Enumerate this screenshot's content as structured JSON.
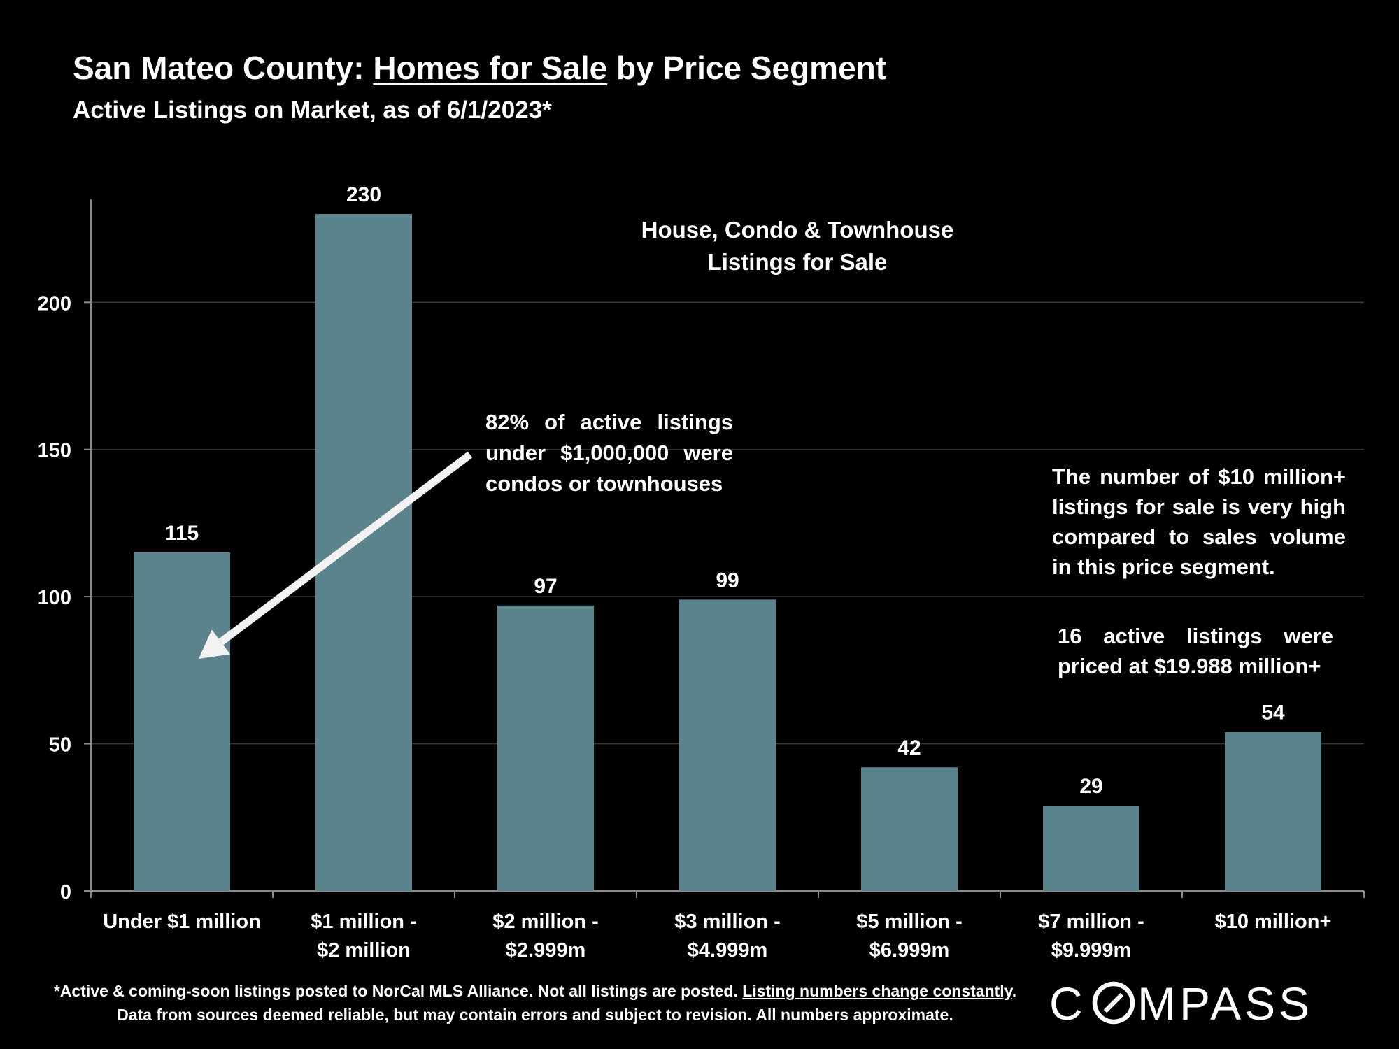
{
  "header": {
    "title_prefix": "San Mateo County: ",
    "title_underlined": "Homes for Sale",
    "title_suffix": " by Price Segment",
    "subtitle": "Active Listings on Market, as of 6/1/2023*"
  },
  "chart_data": {
    "type": "bar",
    "title": "San Mateo County: Homes for Sale by Price Segment",
    "subtitle": "Active Listings on Market, as of 6/1/2023*",
    "categories": [
      [
        "Under $1 million"
      ],
      [
        "$1 million -",
        "$2 million"
      ],
      [
        "$2 million -",
        "$2.999m"
      ],
      [
        "$3 million -",
        "$4.999m"
      ],
      [
        "$5 million -",
        "$6.999m"
      ],
      [
        "$7 million -",
        "$9.999m"
      ],
      [
        "$10 million+"
      ]
    ],
    "values": [
      115,
      230,
      97,
      99,
      42,
      29,
      54
    ],
    "data_labels": [
      "115",
      "230",
      "97",
      "99",
      "42",
      "29",
      "54"
    ],
    "ylim": [
      0,
      235
    ],
    "yticks": [
      0,
      50,
      100,
      150,
      200
    ],
    "grid": true,
    "bar_color": "#5b838c",
    "grid_color": "#3a3a3a",
    "legend_text": [
      "House, Condo & Townhouse",
      "Listings for Sale"
    ]
  },
  "annotations": {
    "left": "82% of active listings under $1,000,000 were condos or townhouses",
    "right_1": "The number of $10 million+ listings for sale is very high compared to sales volume in this price segment.",
    "right_2": "16 active listings were priced at $19.988 million+"
  },
  "footnote": {
    "part1": "*Active & coming-soon listings posted to NorCal MLS Alliance. Not all listings are posted. ",
    "underlined": "Listing numbers change constantly",
    "part2": ". Data from sources deemed reliable, but may contain errors and subject to revision. All numbers approximate."
  },
  "brand": {
    "name": "COMPASS",
    "logo_icon": "compass-o-slash-icon"
  }
}
